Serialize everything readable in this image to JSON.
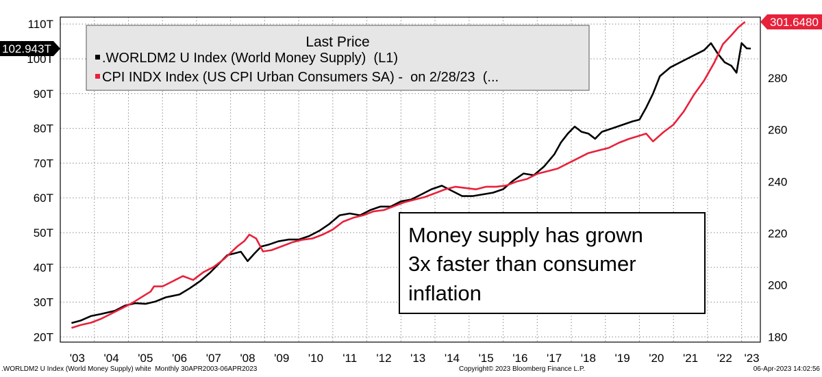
{
  "chart_data": {
    "type": "line",
    "grid": true,
    "legend": {
      "placement": "top-left",
      "title": "Last Price",
      "entries": [
        {
          "marker_color": "#000000",
          "label": ".WORLDM2 U Index (World Money Supply)  (L1)"
        },
        {
          "marker_color": "#e8213a",
          "label": "CPI INDX Index (US CPI Urban Consumers SA) -  on 2/28/23  (..."
        }
      ]
    },
    "annotation": {
      "lines": [
        "Money supply has grown",
        "3x faster than consumer",
        "inflation"
      ]
    },
    "x_axis": {
      "range": [
        2003.0,
        2023.55
      ],
      "ticks": [
        {
          "value": 2003.5,
          "label": "'03"
        },
        {
          "value": 2004.5,
          "label": "'04"
        },
        {
          "value": 2005.5,
          "label": "'05"
        },
        {
          "value": 2006.5,
          "label": "'06"
        },
        {
          "value": 2007.5,
          "label": "'07"
        },
        {
          "value": 2008.5,
          "label": "'08"
        },
        {
          "value": 2009.5,
          "label": "'09"
        },
        {
          "value": 2010.5,
          "label": "'10"
        },
        {
          "value": 2011.5,
          "label": "'11"
        },
        {
          "value": 2012.5,
          "label": "'12"
        },
        {
          "value": 2013.5,
          "label": "'13"
        },
        {
          "value": 2014.5,
          "label": "'14"
        },
        {
          "value": 2015.5,
          "label": "'15"
        },
        {
          "value": 2016.5,
          "label": "'16"
        },
        {
          "value": 2017.5,
          "label": "'17"
        },
        {
          "value": 2018.5,
          "label": "'18"
        },
        {
          "value": 2019.5,
          "label": "'19"
        },
        {
          "value": 2020.5,
          "label": "'20"
        },
        {
          "value": 2021.5,
          "label": "'21"
        },
        {
          "value": 2022.5,
          "label": "'22"
        },
        {
          "value": 2023.3,
          "label": "'23"
        }
      ],
      "gridlines": [
        2003.0,
        2004.0,
        2005.0,
        2006.0,
        2007.0,
        2008.0,
        2009.0,
        2010.0,
        2011.0,
        2012.0,
        2013.0,
        2014.0,
        2015.0,
        2016.0,
        2017.0,
        2018.0,
        2019.0,
        2020.0,
        2021.0,
        2022.0,
        2023.0
      ]
    },
    "left_axis": {
      "range": [
        18.5,
        112
      ],
      "ticks": [
        {
          "value": 20,
          "label": "20T"
        },
        {
          "value": 30,
          "label": "30T"
        },
        {
          "value": 40,
          "label": "40T"
        },
        {
          "value": 50,
          "label": "50T"
        },
        {
          "value": 60,
          "label": "60T"
        },
        {
          "value": 70,
          "label": "70T"
        },
        {
          "value": 80,
          "label": "80T"
        },
        {
          "value": 90,
          "label": "90T"
        },
        {
          "value": 100,
          "label": "100T"
        },
        {
          "value": 110,
          "label": "110T"
        }
      ]
    },
    "right_axis": {
      "range": [
        178,
        303.5
      ],
      "ticks": [
        {
          "value": 180,
          "label": "180"
        },
        {
          "value": 200,
          "label": "200"
        },
        {
          "value": 220,
          "label": "220"
        },
        {
          "value": 240,
          "label": "240"
        },
        {
          "value": 260,
          "label": "260"
        },
        {
          "value": 280,
          "label": "280"
        }
      ]
    },
    "last_price_tags": {
      "left": {
        "value": 102.943,
        "label": "102.943T"
      },
      "right": {
        "value": 301.648,
        "label": "301.6480"
      }
    },
    "series": [
      {
        "name": ".WORLDM2 U Index (World Money Supply)  (L1)",
        "color": "#000000",
        "axis": "left",
        "x": [
          2003.33,
          2003.6,
          2003.9,
          2004.2,
          2004.6,
          2004.9,
          2005.2,
          2005.5,
          2005.8,
          2006.1,
          2006.5,
          2006.8,
          2007.1,
          2007.4,
          2007.7,
          2007.9,
          2008.1,
          2008.3,
          2008.5,
          2008.7,
          2008.9,
          2009.1,
          2009.4,
          2009.7,
          2010.0,
          2010.3,
          2010.6,
          2010.9,
          2011.2,
          2011.5,
          2011.8,
          2012.1,
          2012.4,
          2012.7,
          2013.0,
          2013.3,
          2013.6,
          2013.9,
          2014.2,
          2014.5,
          2014.8,
          2015.1,
          2015.4,
          2015.7,
          2016.0,
          2016.3,
          2016.6,
          2016.9,
          2017.2,
          2017.5,
          2017.7,
          2017.9,
          2018.1,
          2018.3,
          2018.5,
          2018.7,
          2018.9,
          2019.2,
          2019.5,
          2019.8,
          2020.0,
          2020.2,
          2020.4,
          2020.6,
          2020.9,
          2021.2,
          2021.5,
          2021.7,
          2021.9,
          2022.1,
          2022.3,
          2022.5,
          2022.7,
          2022.85,
          2023.0,
          2023.15,
          2023.27
        ],
        "values": [
          24.0,
          24.7,
          26.0,
          26.6,
          27.5,
          29.0,
          29.7,
          29.5,
          30.2,
          31.4,
          32.2,
          34.0,
          36.0,
          38.5,
          41.5,
          43.5,
          44.0,
          44.5,
          41.8,
          44.0,
          46.0,
          46.5,
          47.5,
          48.0,
          48.0,
          49.0,
          50.5,
          52.5,
          55.0,
          55.5,
          55.0,
          56.5,
          57.5,
          57.5,
          59.0,
          59.5,
          61.0,
          62.5,
          63.5,
          62.0,
          60.5,
          60.5,
          61.0,
          61.5,
          62.5,
          65.0,
          67.0,
          66.5,
          69.0,
          72.5,
          76.0,
          78.5,
          80.5,
          79.0,
          78.5,
          77.0,
          79.0,
          80.0,
          81.0,
          82.0,
          82.5,
          86.0,
          90.0,
          95.0,
          97.5,
          99.0,
          100.5,
          101.5,
          102.5,
          104.5,
          101.5,
          99.0,
          98.0,
          96.0,
          104.5,
          103.0,
          102.94
        ]
      },
      {
        "name": "CPI INDX Index (US CPI Urban Consumers SA) -  on 2/28/23  (...",
        "color": "#e8213a",
        "axis": "right",
        "x": [
          2003.33,
          2003.6,
          2003.9,
          2004.2,
          2004.5,
          2004.8,
          2005.1,
          2005.4,
          2005.65,
          2005.75,
          2006.0,
          2006.3,
          2006.6,
          2006.9,
          2007.2,
          2007.5,
          2007.8,
          2008.0,
          2008.2,
          2008.4,
          2008.55,
          2008.75,
          2008.95,
          2009.2,
          2009.5,
          2009.8,
          2010.1,
          2010.4,
          2010.7,
          2011.0,
          2011.3,
          2011.6,
          2011.9,
          2012.2,
          2012.5,
          2012.8,
          2013.1,
          2013.4,
          2013.7,
          2014.0,
          2014.3,
          2014.6,
          2014.9,
          2015.2,
          2015.5,
          2015.8,
          2016.1,
          2016.4,
          2016.7,
          2017.0,
          2017.3,
          2017.6,
          2017.9,
          2018.2,
          2018.5,
          2018.8,
          2019.1,
          2019.4,
          2019.7,
          2019.95,
          2020.2,
          2020.4,
          2020.7,
          2021.0,
          2021.3,
          2021.6,
          2021.9,
          2022.2,
          2022.45,
          2022.7,
          2022.9,
          2023.1
        ],
        "values": [
          183.5,
          184.6,
          185.5,
          187.0,
          189.0,
          191.0,
          193.0,
          195.5,
          197.5,
          199.5,
          199.5,
          201.5,
          203.5,
          202.0,
          205.0,
          207.0,
          210.0,
          212.5,
          215.0,
          217.0,
          219.5,
          218.0,
          213.0,
          213.5,
          215.0,
          216.5,
          217.5,
          218.0,
          219.5,
          221.5,
          224.5,
          226.0,
          227.0,
          228.5,
          229.0,
          230.5,
          232.0,
          233.0,
          234.0,
          235.5,
          237.0,
          238.0,
          237.5,
          237.0,
          238.0,
          238.0,
          238.5,
          240.0,
          241.0,
          243.0,
          244.0,
          245.0,
          247.0,
          249.0,
          251.0,
          252.0,
          253.0,
          255.0,
          256.5,
          257.5,
          258.5,
          255.5,
          259.0,
          262.0,
          267.0,
          273.5,
          279.0,
          286.0,
          293.0,
          296.5,
          299.5,
          301.65
        ]
      }
    ]
  },
  "footer": {
    "left": ".WORLDM2 U Index (World Money Supply) white  Monthly 30APR2003-06APR2023",
    "center": "Copyright© 2023 Bloomberg Finance L.P.",
    "right": "06-Apr-2023 14:02:56"
  }
}
